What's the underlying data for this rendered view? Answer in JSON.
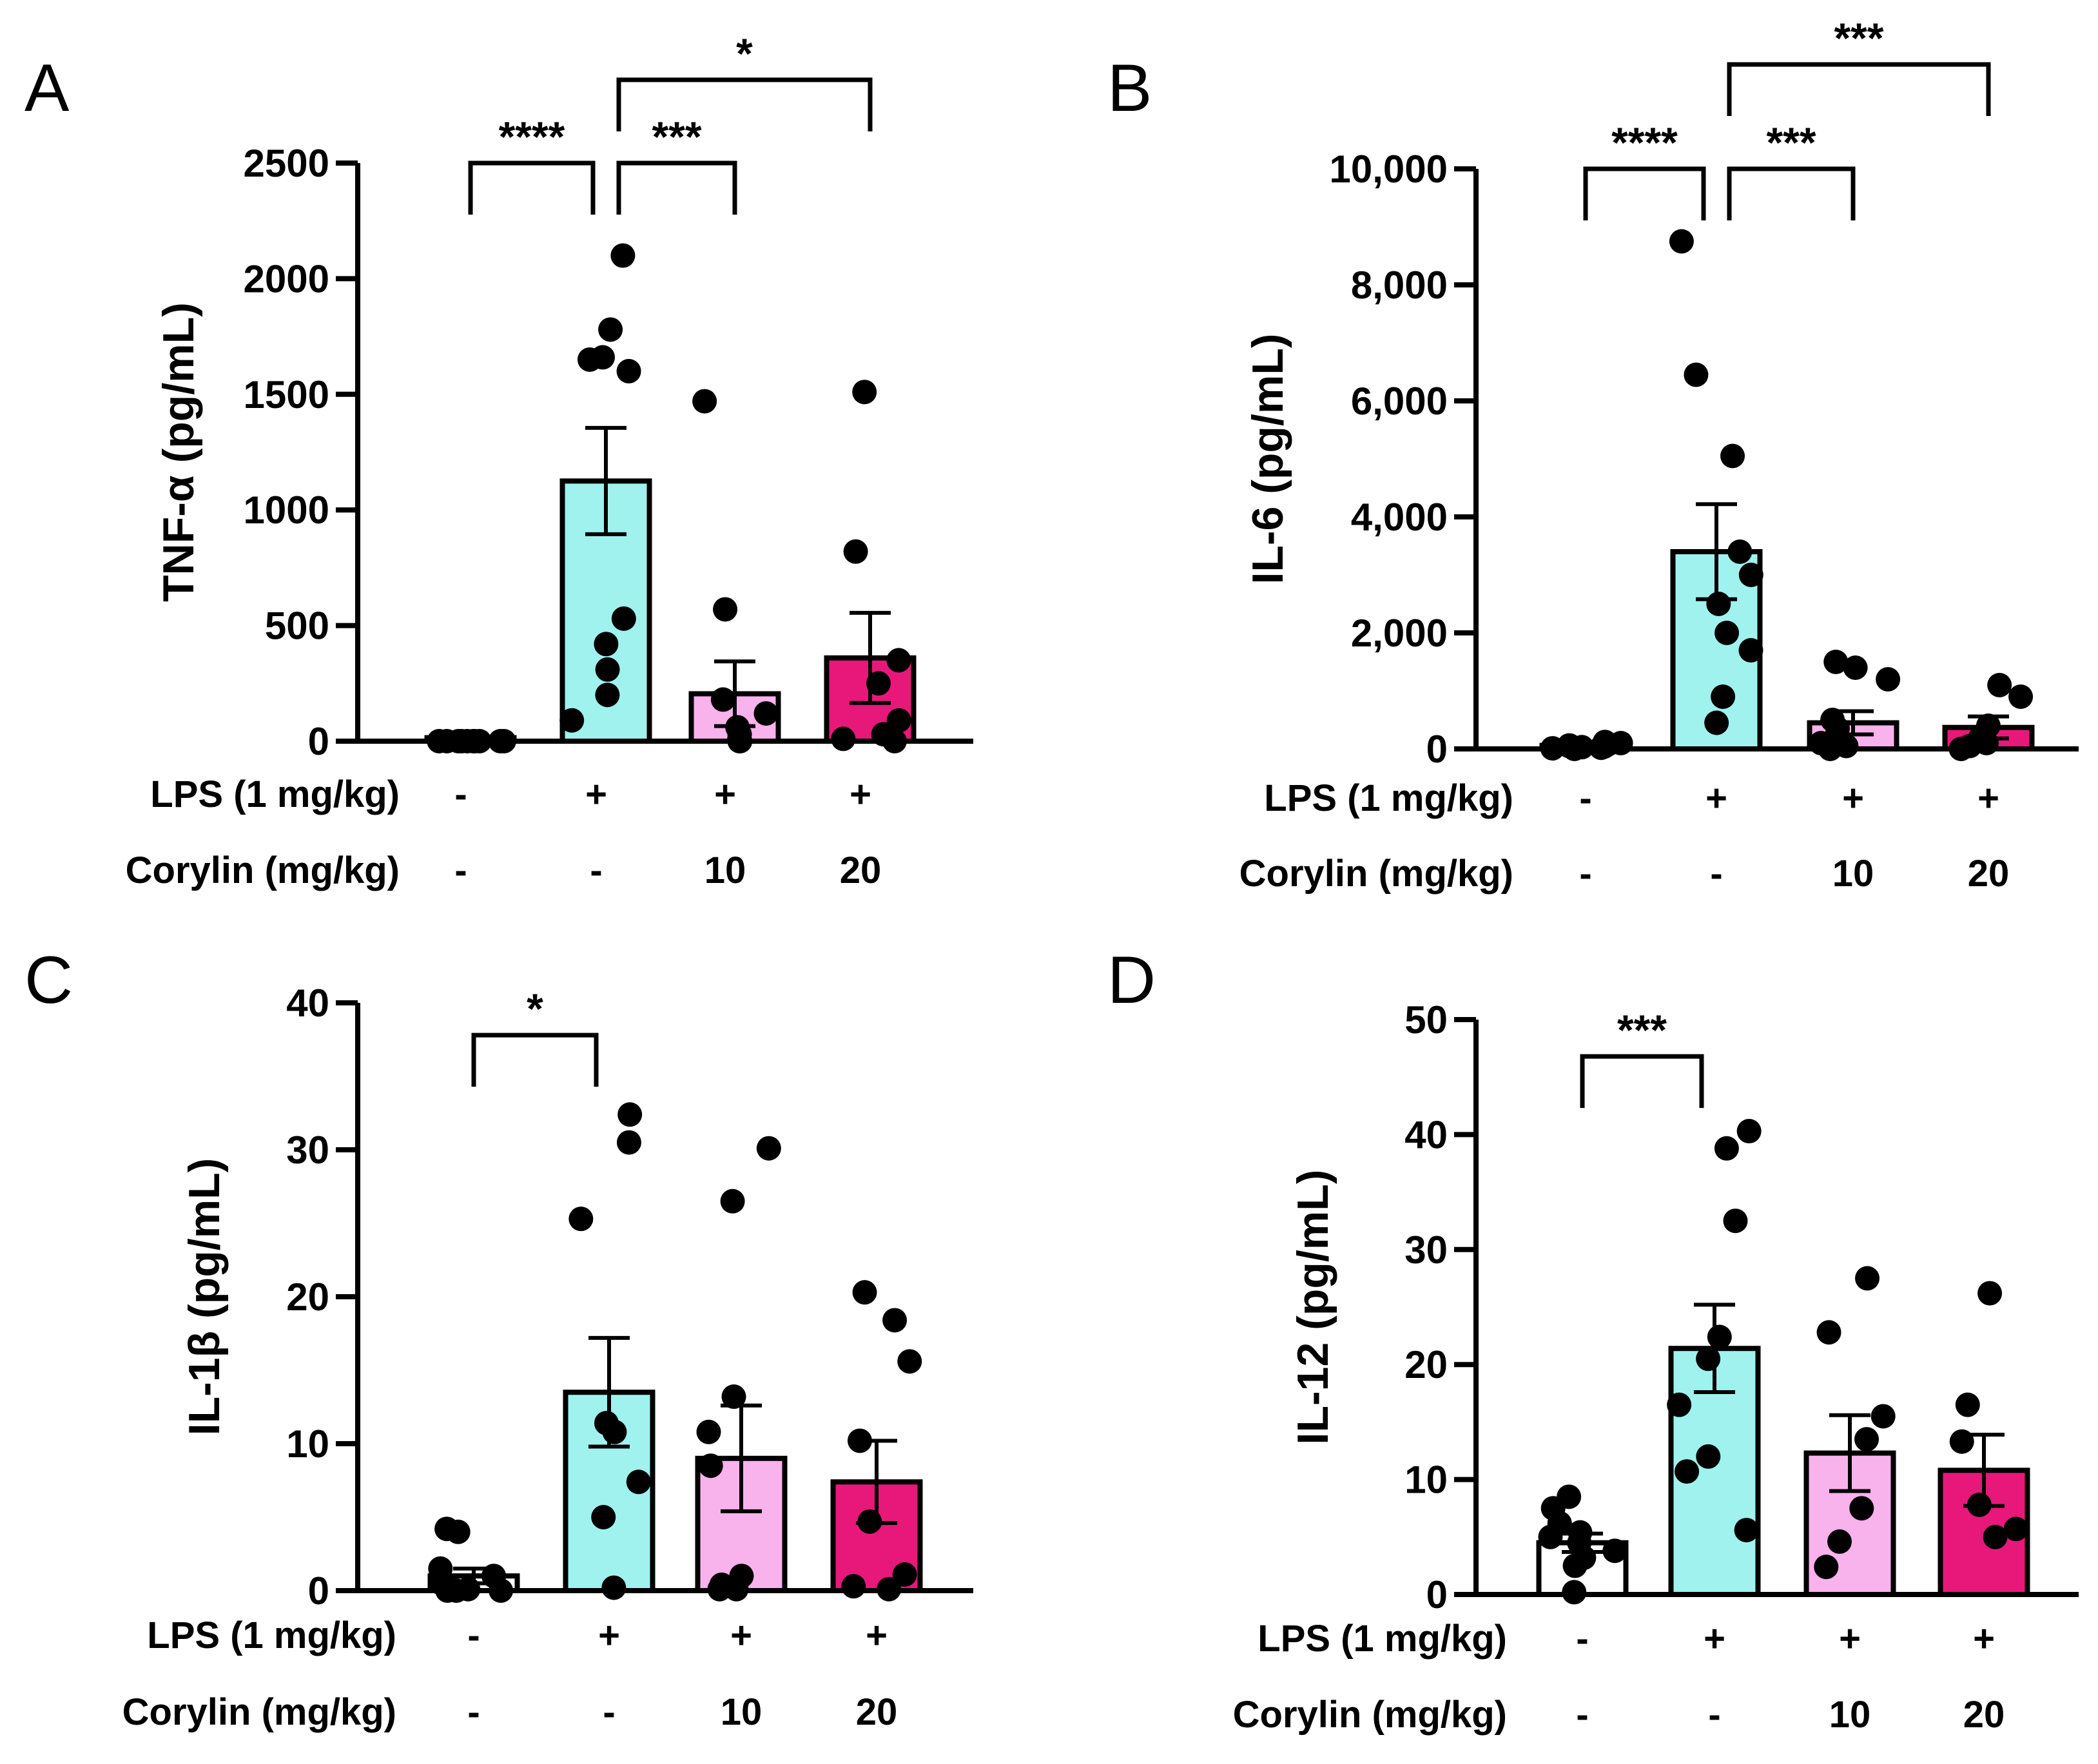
{
  "chart_data": [
    {
      "panel": "A",
      "type": "bar",
      "ylabel": "TNF-α (pg/mL)",
      "ylim": [
        0,
        2500
      ],
      "yticks": [
        0,
        500,
        1000,
        1500,
        2000,
        2500
      ],
      "ytick_labels": [
        "0",
        "500",
        "1000",
        "1500",
        "2000",
        "2500"
      ],
      "colors": [
        "#ffffff",
        "#9ff2ee",
        "#f8b2ec",
        "#e8187a"
      ],
      "rows": [
        {
          "label": "LPS (1 mg/kg)",
          "values": [
            "-",
            "+",
            "+",
            "+"
          ]
        },
        {
          "label": "Corylin (mg/kg)",
          "values": [
            "-",
            "-",
            "10",
            "20"
          ]
        }
      ],
      "means": [
        15,
        1125,
        205,
        360
      ],
      "sem": [
        5,
        230,
        140,
        195
      ],
      "points": [
        [
          0,
          0,
          0,
          0,
          0,
          0,
          0,
          0,
          0,
          0
        ],
        [
          2100,
          1780,
          1660,
          1650,
          1600,
          530,
          420,
          310,
          200,
          90
        ],
        [
          1470,
          570,
          180,
          120,
          60,
          30,
          10,
          0,
          0
        ],
        [
          1510,
          820,
          350,
          250,
          90,
          30,
          10,
          0
        ]
      ],
      "significance": [
        {
          "from": 0,
          "to": 1,
          "label": "****",
          "level": 2500
        },
        {
          "from": 1,
          "to": 2,
          "label": "***",
          "level": 2500
        },
        {
          "from": 1,
          "to": 3,
          "label": "*",
          "level": 2860
        }
      ]
    },
    {
      "panel": "B",
      "type": "bar",
      "ylabel": "IL-6 (pg/mL)",
      "ylim": [
        0,
        10000
      ],
      "yticks": [
        0,
        2000,
        4000,
        6000,
        8000,
        10000
      ],
      "ytick_labels": [
        "0",
        "2,000",
        "4,000",
        "6,000",
        "8,000",
        "10,000"
      ],
      "colors": [
        "#ffffff",
        "#9ff2ee",
        "#f8b2ec",
        "#e8187a"
      ],
      "rows": [
        {
          "label": "LPS (1 mg/kg)",
          "values": [
            "-",
            "+",
            "+",
            "+"
          ]
        },
        {
          "label": "Corylin (mg/kg)",
          "values": [
            "-",
            "-",
            "10",
            "20"
          ]
        }
      ],
      "means": [
        60,
        3400,
        450,
        370
      ],
      "sem": [
        20,
        820,
        200,
        190
      ],
      "points": [
        [
          120,
          100,
          80,
          60,
          50,
          40,
          30,
          20,
          10,
          0
        ],
        [
          8750,
          6450,
          5050,
          3400,
          3000,
          2500,
          2000,
          1700,
          900,
          450
        ],
        [
          1500,
          1400,
          1200,
          500,
          350,
          200,
          100,
          50,
          0
        ],
        [
          1100,
          900,
          400,
          200,
          100,
          50,
          0
        ]
      ],
      "significance": [
        {
          "from": 0,
          "to": 1,
          "label": "****",
          "level": 10000
        },
        {
          "from": 1,
          "to": 2,
          "label": "***",
          "level": 10000
        },
        {
          "from": 1,
          "to": 3,
          "label": "***",
          "level": 11800
        }
      ]
    },
    {
      "panel": "C",
      "type": "bar",
      "ylabel": "IL-1β (pg/mL)",
      "ylim": [
        0,
        40
      ],
      "yticks": [
        0,
        10,
        20,
        30,
        40
      ],
      "ytick_labels": [
        "0",
        "10",
        "20",
        "30",
        "40"
      ],
      "colors": [
        "#ffffff",
        "#9ff2ee",
        "#f8b2ec",
        "#e8187a"
      ],
      "rows": [
        {
          "label": "LPS (1 mg/kg)",
          "values": [
            "-",
            "+",
            "+",
            "+"
          ]
        },
        {
          "label": "Corylin (mg/kg)",
          "values": [
            "-",
            "-",
            "10",
            "20"
          ]
        }
      ],
      "means": [
        1.0,
        13.5,
        9.0,
        7.4
      ],
      "sem": [
        0.5,
        3.7,
        3.6,
        2.8
      ],
      "points": [
        [
          4.2,
          4.0,
          1.5,
          1.0,
          0.5,
          0.2,
          0.1,
          0,
          0,
          0
        ],
        [
          32.4,
          30.5,
          25.3,
          11.4,
          10.8,
          7.4,
          5.0,
          0.2
        ],
        [
          30.1,
          26.5,
          13.2,
          10.8,
          8.5,
          1.0,
          0.4,
          0.1,
          0.1
        ],
        [
          20.3,
          18.4,
          15.6,
          10.2,
          4.7,
          1.1,
          0.3,
          0.1
        ]
      ],
      "significance": [
        {
          "from": 0,
          "to": 1,
          "label": "*",
          "level": 37.8
        }
      ]
    },
    {
      "panel": "D",
      "type": "bar",
      "ylabel": "IL-12 (pg/mL)",
      "ylim": [
        0,
        50
      ],
      "yticks": [
        0,
        10,
        20,
        30,
        40,
        50
      ],
      "ytick_labels": [
        "0",
        "10",
        "20",
        "30",
        "40",
        "50"
      ],
      "colors": [
        "#ffffff",
        "#9ff2ee",
        "#f8b2ec",
        "#e8187a"
      ],
      "rows": [
        {
          "label": "LPS (1 mg/kg)",
          "values": [
            "-",
            "+",
            "+",
            "+"
          ]
        },
        {
          "label": "Corylin (mg/kg)",
          "values": [
            "-",
            "-",
            "10",
            "20"
          ]
        }
      ],
      "means": [
        4.5,
        21.4,
        12.3,
        10.8
      ],
      "sem": [
        0.8,
        3.8,
        3.3,
        3.1
      ],
      "points": [
        [
          8.5,
          7.5,
          6.2,
          5.4,
          5.0,
          4.5,
          3.8,
          3.2,
          2.5,
          0.2
        ],
        [
          40.3,
          38.8,
          32.5,
          22.4,
          20.5,
          16.5,
          12.0,
          10.7,
          5.6
        ],
        [
          27.5,
          22.8,
          15.5,
          13.5,
          7.5,
          4.6,
          2.4
        ],
        [
          26.2,
          16.5,
          13.3,
          7.8,
          5.7,
          5.0
        ]
      ],
      "significance": [
        {
          "from": 0,
          "to": 1,
          "label": "***",
          "level": 46.8
        }
      ]
    }
  ]
}
